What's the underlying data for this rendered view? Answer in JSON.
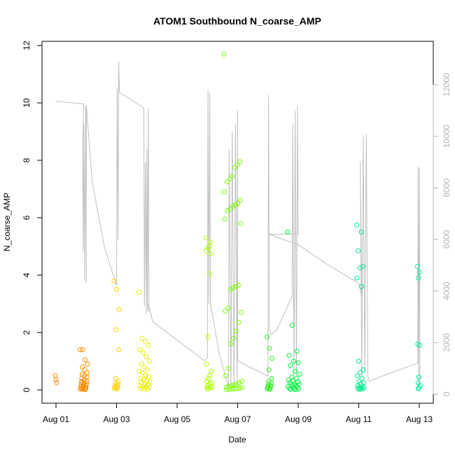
{
  "chart_data": {
    "type": "scatter",
    "title": "ATOM1 Southbound N_coarse_AMP",
    "xlabel": "Date",
    "ylabel": "N_coarse_AMP",
    "xlim": [
      0,
      12.3
    ],
    "ylim": [
      0,
      12
    ],
    "y2lim": [
      0,
      13000
    ],
    "x_ticks": [
      {
        "label": "Aug 01",
        "value": 0
      },
      {
        "label": "Aug 03",
        "value": 2
      },
      {
        "label": "Aug 05",
        "value": 4
      },
      {
        "label": "Aug 07",
        "value": 6
      },
      {
        "label": "Aug 09",
        "value": 8
      },
      {
        "label": "Aug 11",
        "value": 10
      },
      {
        "label": "Aug 13",
        "value": 12
      }
    ],
    "y_ticks": [
      "0",
      "2",
      "4",
      "6",
      "8",
      "10",
      "12"
    ],
    "y2_ticks": [
      "0",
      "2000",
      "4000",
      "6000",
      "8000",
      "10000",
      "12000"
    ],
    "colors": {
      "secondary_line": "#c0c0c0",
      "secondary_axis": "#b5b5b5",
      "points": [
        "#ff8c00",
        "#ffb000",
        "#e8f000",
        "#c8ff00",
        "#78ff00",
        "#00f040",
        "#00e890"
      ]
    },
    "clusters": [
      {
        "x": 0.0,
        "spread": 0.02,
        "color": "#ff8c00",
        "y": [
          0.5,
          0.35,
          0.25
        ]
      },
      {
        "x": 0.92,
        "spread": 0.12,
        "color": "#ff8c00",
        "y": [
          1.4,
          1.4,
          1.05,
          0.9,
          0.8,
          0.7,
          0.6,
          0.55,
          0.5,
          0.45,
          0.4,
          0.35,
          0.3,
          0.28,
          0.25,
          0.22,
          0.2,
          0.18,
          0.15,
          0.12,
          0.1,
          0.08,
          0.06,
          0.05,
          0.04,
          0.03,
          0.02,
          0.01
        ]
      },
      {
        "x": 2.0,
        "spread": 0.08,
        "color": "#ffd000",
        "y": [
          3.8,
          3.5,
          2.8,
          2.1,
          1.4,
          0.4,
          0.3,
          0.25,
          0.2,
          0.15,
          0.12,
          0.1,
          0.08,
          0.05,
          0.03
        ]
      },
      {
        "x": 2.92,
        "spread": 0.18,
        "color": "#e8f000",
        "y": [
          3.4,
          1.8,
          1.7,
          1.55,
          1.4,
          1.3,
          1.15,
          1.0,
          0.9,
          0.8,
          0.7,
          0.65,
          0.6,
          0.5,
          0.45,
          0.4,
          0.35,
          0.3,
          0.28,
          0.25,
          0.2,
          0.18,
          0.15,
          0.12,
          0.1,
          0.08,
          0.05,
          0.03,
          0.02
        ]
      },
      {
        "x": 5.05,
        "spread": 0.1,
        "color": "#b0ff00",
        "y": [
          5.3,
          5.15,
          5.0,
          4.95,
          4.85,
          4.75,
          4.05,
          1.85,
          0.9,
          0.65,
          0.5,
          0.4,
          0.3,
          0.25,
          0.2,
          0.15,
          0.12,
          0.1,
          0.08,
          0.05,
          0.03
        ]
      },
      {
        "x": 5.85,
        "spread": 0.3,
        "color": "#78ff00",
        "y": [
          11.7,
          7.95,
          7.85,
          7.75,
          7.45,
          7.35,
          7.25,
          6.9,
          6.6,
          6.5,
          6.45,
          6.4,
          6.3,
          6.25,
          5.95,
          5.8,
          3.65,
          3.6,
          3.55,
          3.5,
          2.85,
          2.75,
          2.7,
          2.35,
          2.05,
          1.8,
          1.6,
          0.75,
          0.5,
          0.3,
          0.25,
          0.2,
          0.18,
          0.15,
          0.12,
          0.1,
          0.08,
          0.06,
          0.05,
          0.04,
          0.03,
          0.02,
          0.01
        ]
      },
      {
        "x": 7.05,
        "spread": 0.08,
        "color": "#30f020",
        "y": [
          1.85,
          1.45,
          1.1,
          0.7,
          0.4,
          0.3,
          0.25,
          0.2,
          0.15,
          0.12,
          0.1,
          0.08,
          0.05,
          0.03,
          0.02
        ]
      },
      {
        "x": 7.85,
        "spread": 0.2,
        "color": "#00f040",
        "y": [
          5.5,
          2.25,
          1.35,
          1.2,
          1.0,
          0.95,
          0.85,
          0.65,
          0.55,
          0.45,
          0.4,
          0.35,
          0.3,
          0.28,
          0.25,
          0.22,
          0.2,
          0.18,
          0.15,
          0.12,
          0.1,
          0.08,
          0.05,
          0.04,
          0.03,
          0.02,
          0.01
        ]
      },
      {
        "x": 10.05,
        "spread": 0.12,
        "color": "#00e890",
        "y": [
          5.75,
          5.5,
          4.85,
          4.3,
          4.25,
          3.9,
          3.6,
          1.0,
          0.7,
          0.6,
          0.5,
          0.4,
          0.3,
          0.25,
          0.2,
          0.15,
          0.12,
          0.1,
          0.08,
          0.05,
          0.04,
          0.03,
          0.02
        ]
      },
      {
        "x": 11.98,
        "spread": 0.04,
        "color": "#00e8a0",
        "y": [
          4.3,
          4.1,
          3.9,
          1.6,
          1.55,
          0.45,
          0.25,
          0.15,
          0.08,
          0.04
        ]
      }
    ],
    "secondary_line": [
      [
        0.0,
        11350
      ],
      [
        0.5,
        11300
      ],
      [
        0.92,
        11250
      ],
      [
        0.88,
        9700
      ],
      [
        0.9,
        5500
      ],
      [
        0.92,
        10500
      ],
      [
        0.95,
        4400
      ],
      [
        0.98,
        11200
      ],
      [
        1.0,
        4300
      ],
      [
        1.0,
        11200
      ],
      [
        1.2,
        8200
      ],
      [
        1.6,
        5700
      ],
      [
        2.0,
        4200
      ],
      [
        2.02,
        11900
      ],
      [
        2.05,
        6000
      ],
      [
        2.07,
        12900
      ],
      [
        2.1,
        11700
      ],
      [
        2.9,
        11100
      ],
      [
        2.92,
        3400
      ],
      [
        2.95,
        9000
      ],
      [
        2.98,
        3100
      ],
      [
        3.0,
        9500
      ],
      [
        3.02,
        3200
      ],
      [
        3.05,
        11100
      ],
      [
        3.07,
        3200
      ],
      [
        3.05,
        3500
      ],
      [
        3.2,
        2800
      ],
      [
        4.9,
        1300
      ],
      [
        5.0,
        1400
      ],
      [
        5.02,
        11800
      ],
      [
        5.05,
        3500
      ],
      [
        5.08,
        11700
      ],
      [
        5.1,
        3500
      ],
      [
        5.4,
        1500
      ],
      [
        5.7,
        300
      ],
      [
        5.72,
        9500
      ],
      [
        5.78,
        200
      ],
      [
        5.82,
        10200
      ],
      [
        5.88,
        200
      ],
      [
        5.93,
        10500
      ],
      [
        5.98,
        300
      ],
      [
        6.0,
        11000
      ],
      [
        6.0,
        1300
      ],
      [
        6.3,
        1100
      ],
      [
        7.0,
        700
      ],
      [
        7.02,
        11600
      ],
      [
        7.05,
        2500
      ],
      [
        7.1,
        2300
      ],
      [
        7.3,
        2500
      ],
      [
        7.8,
        3800
      ],
      [
        7.82,
        10500
      ],
      [
        7.86,
        700
      ],
      [
        7.9,
        11000
      ],
      [
        7.94,
        700
      ],
      [
        7.98,
        11200
      ],
      [
        8.0,
        6200
      ],
      [
        7.05,
        6200
      ],
      [
        7.5,
        6000
      ],
      [
        8.0,
        5800
      ],
      [
        9.0,
        5000
      ],
      [
        10.0,
        4300
      ],
      [
        10.1,
        3800
      ],
      [
        10.05,
        9000
      ],
      [
        10.1,
        700
      ],
      [
        10.15,
        10000
      ],
      [
        10.2,
        800
      ],
      [
        10.25,
        10100
      ],
      [
        10.3,
        700
      ],
      [
        10.35,
        500
      ],
      [
        11.0,
        800
      ],
      [
        11.95,
        1200
      ],
      [
        11.96,
        8800
      ],
      [
        11.98,
        400
      ],
      [
        12.0,
        8800
      ],
      [
        12.02,
        500
      ]
    ]
  }
}
